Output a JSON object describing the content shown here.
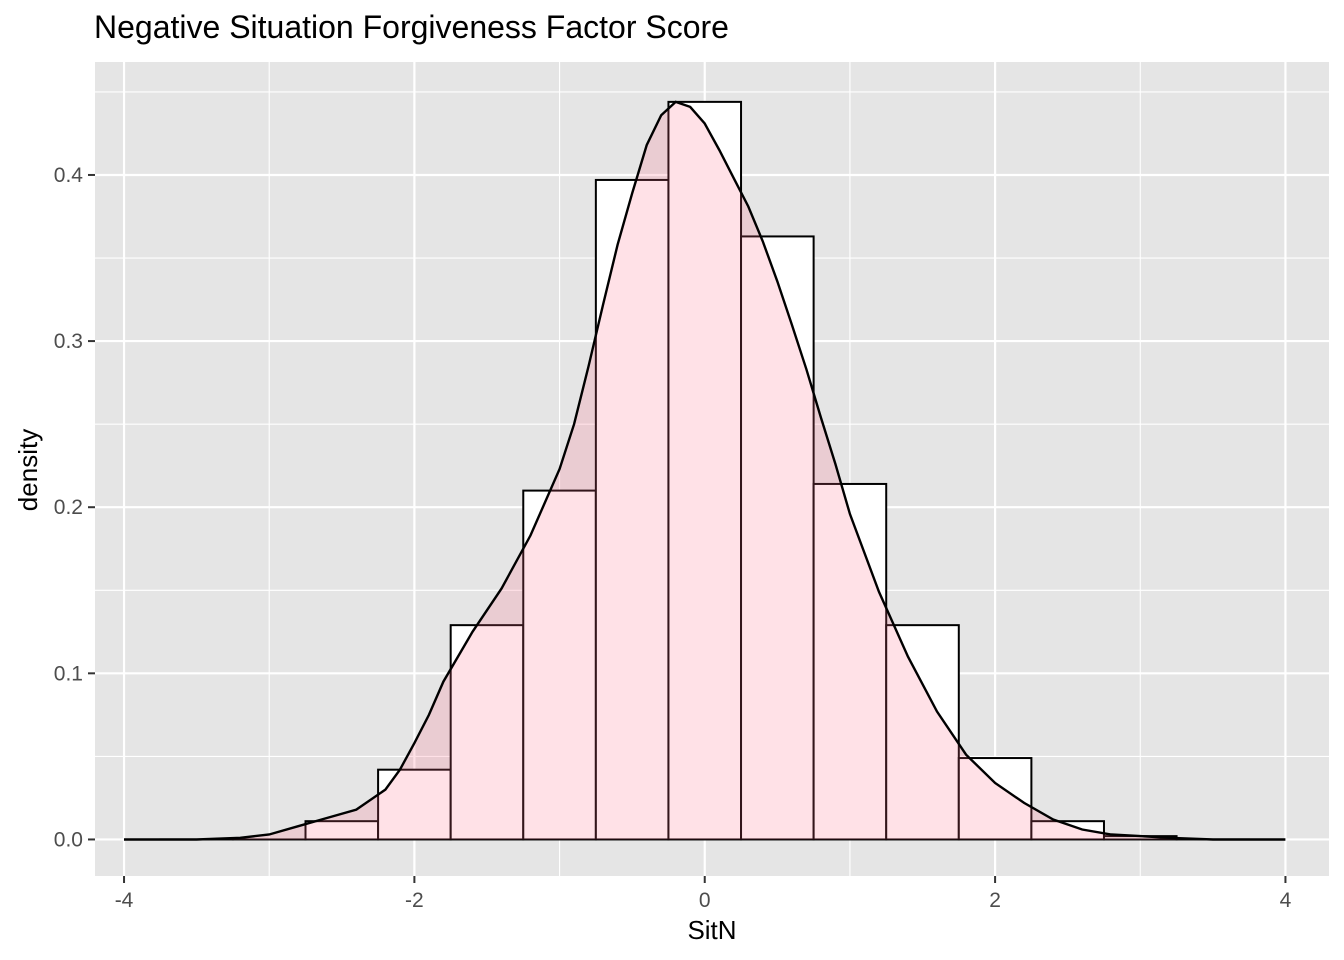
{
  "chart_data": {
    "type": "histogram",
    "title": "Negative Situation Forgiveness Factor Score",
    "xlabel": "SitN",
    "ylabel": "density",
    "xlim": [
      -4.2,
      4.3
    ],
    "ylim": [
      -0.022,
      0.468
    ],
    "x_ticks": [
      -4,
      -2,
      0,
      2,
      4
    ],
    "x_tick_labels": [
      "-4",
      "-2",
      "0",
      "2",
      "4"
    ],
    "y_ticks": [
      0.0,
      0.1,
      0.2,
      0.3,
      0.4
    ],
    "y_tick_labels": [
      "0.0",
      "0.1",
      "0.2",
      "0.3",
      "0.4"
    ],
    "grid": true,
    "bin_width": 0.5,
    "bins": [
      {
        "x0": -3.75,
        "x1": -3.25,
        "density": 0.0
      },
      {
        "x0": -3.25,
        "x1": -2.75,
        "density": 0.0
      },
      {
        "x0": -2.75,
        "x1": -2.25,
        "density": 0.011
      },
      {
        "x0": -2.25,
        "x1": -1.75,
        "density": 0.042
      },
      {
        "x0": -1.75,
        "x1": -1.25,
        "density": 0.129
      },
      {
        "x0": -1.25,
        "x1": -0.75,
        "density": 0.21
      },
      {
        "x0": -0.75,
        "x1": -0.25,
        "density": 0.397
      },
      {
        "x0": -0.25,
        "x1": 0.25,
        "density": 0.444
      },
      {
        "x0": 0.25,
        "x1": 0.75,
        "density": 0.363
      },
      {
        "x0": 0.75,
        "x1": 1.25,
        "density": 0.214
      },
      {
        "x0": 1.25,
        "x1": 1.75,
        "density": 0.129
      },
      {
        "x0": 1.75,
        "x1": 2.25,
        "density": 0.049
      },
      {
        "x0": 2.25,
        "x1": 2.75,
        "density": 0.011
      },
      {
        "x0": 2.75,
        "x1": 3.25,
        "density": 0.002
      },
      {
        "x0": 3.25,
        "x1": 3.75,
        "density": 0.0
      }
    ],
    "density_curve": {
      "x": [
        -4.0,
        -3.5,
        -3.2,
        -3.0,
        -2.8,
        -2.6,
        -2.4,
        -2.2,
        -2.1,
        -2.0,
        -1.9,
        -1.8,
        -1.6,
        -1.4,
        -1.2,
        -1.0,
        -0.9,
        -0.8,
        -0.7,
        -0.6,
        -0.5,
        -0.4,
        -0.3,
        -0.2,
        -0.1,
        0.0,
        0.1,
        0.2,
        0.3,
        0.4,
        0.5,
        0.6,
        0.7,
        0.8,
        0.9,
        1.0,
        1.2,
        1.4,
        1.6,
        1.8,
        2.0,
        2.2,
        2.4,
        2.6,
        2.8,
        3.0,
        3.2,
        3.5,
        4.0
      ],
      "y": [
        0.0,
        0.0,
        0.001,
        0.003,
        0.008,
        0.013,
        0.018,
        0.03,
        0.042,
        0.058,
        0.075,
        0.095,
        0.125,
        0.151,
        0.183,
        0.223,
        0.25,
        0.285,
        0.322,
        0.358,
        0.389,
        0.418,
        0.436,
        0.444,
        0.441,
        0.431,
        0.415,
        0.398,
        0.381,
        0.36,
        0.336,
        0.31,
        0.283,
        0.254,
        0.226,
        0.196,
        0.149,
        0.11,
        0.077,
        0.051,
        0.034,
        0.022,
        0.012,
        0.006,
        0.003,
        0.002,
        0.001,
        0.0,
        0.0
      ]
    },
    "colors": {
      "panel": "#e5e5e5",
      "grid": "#ffffff",
      "bar_fill": "#ffffff",
      "bar_stroke": "#000000",
      "density_fill": "#ff6b86",
      "density_fill_opacity": 0.2,
      "density_stroke": "#000000"
    }
  }
}
